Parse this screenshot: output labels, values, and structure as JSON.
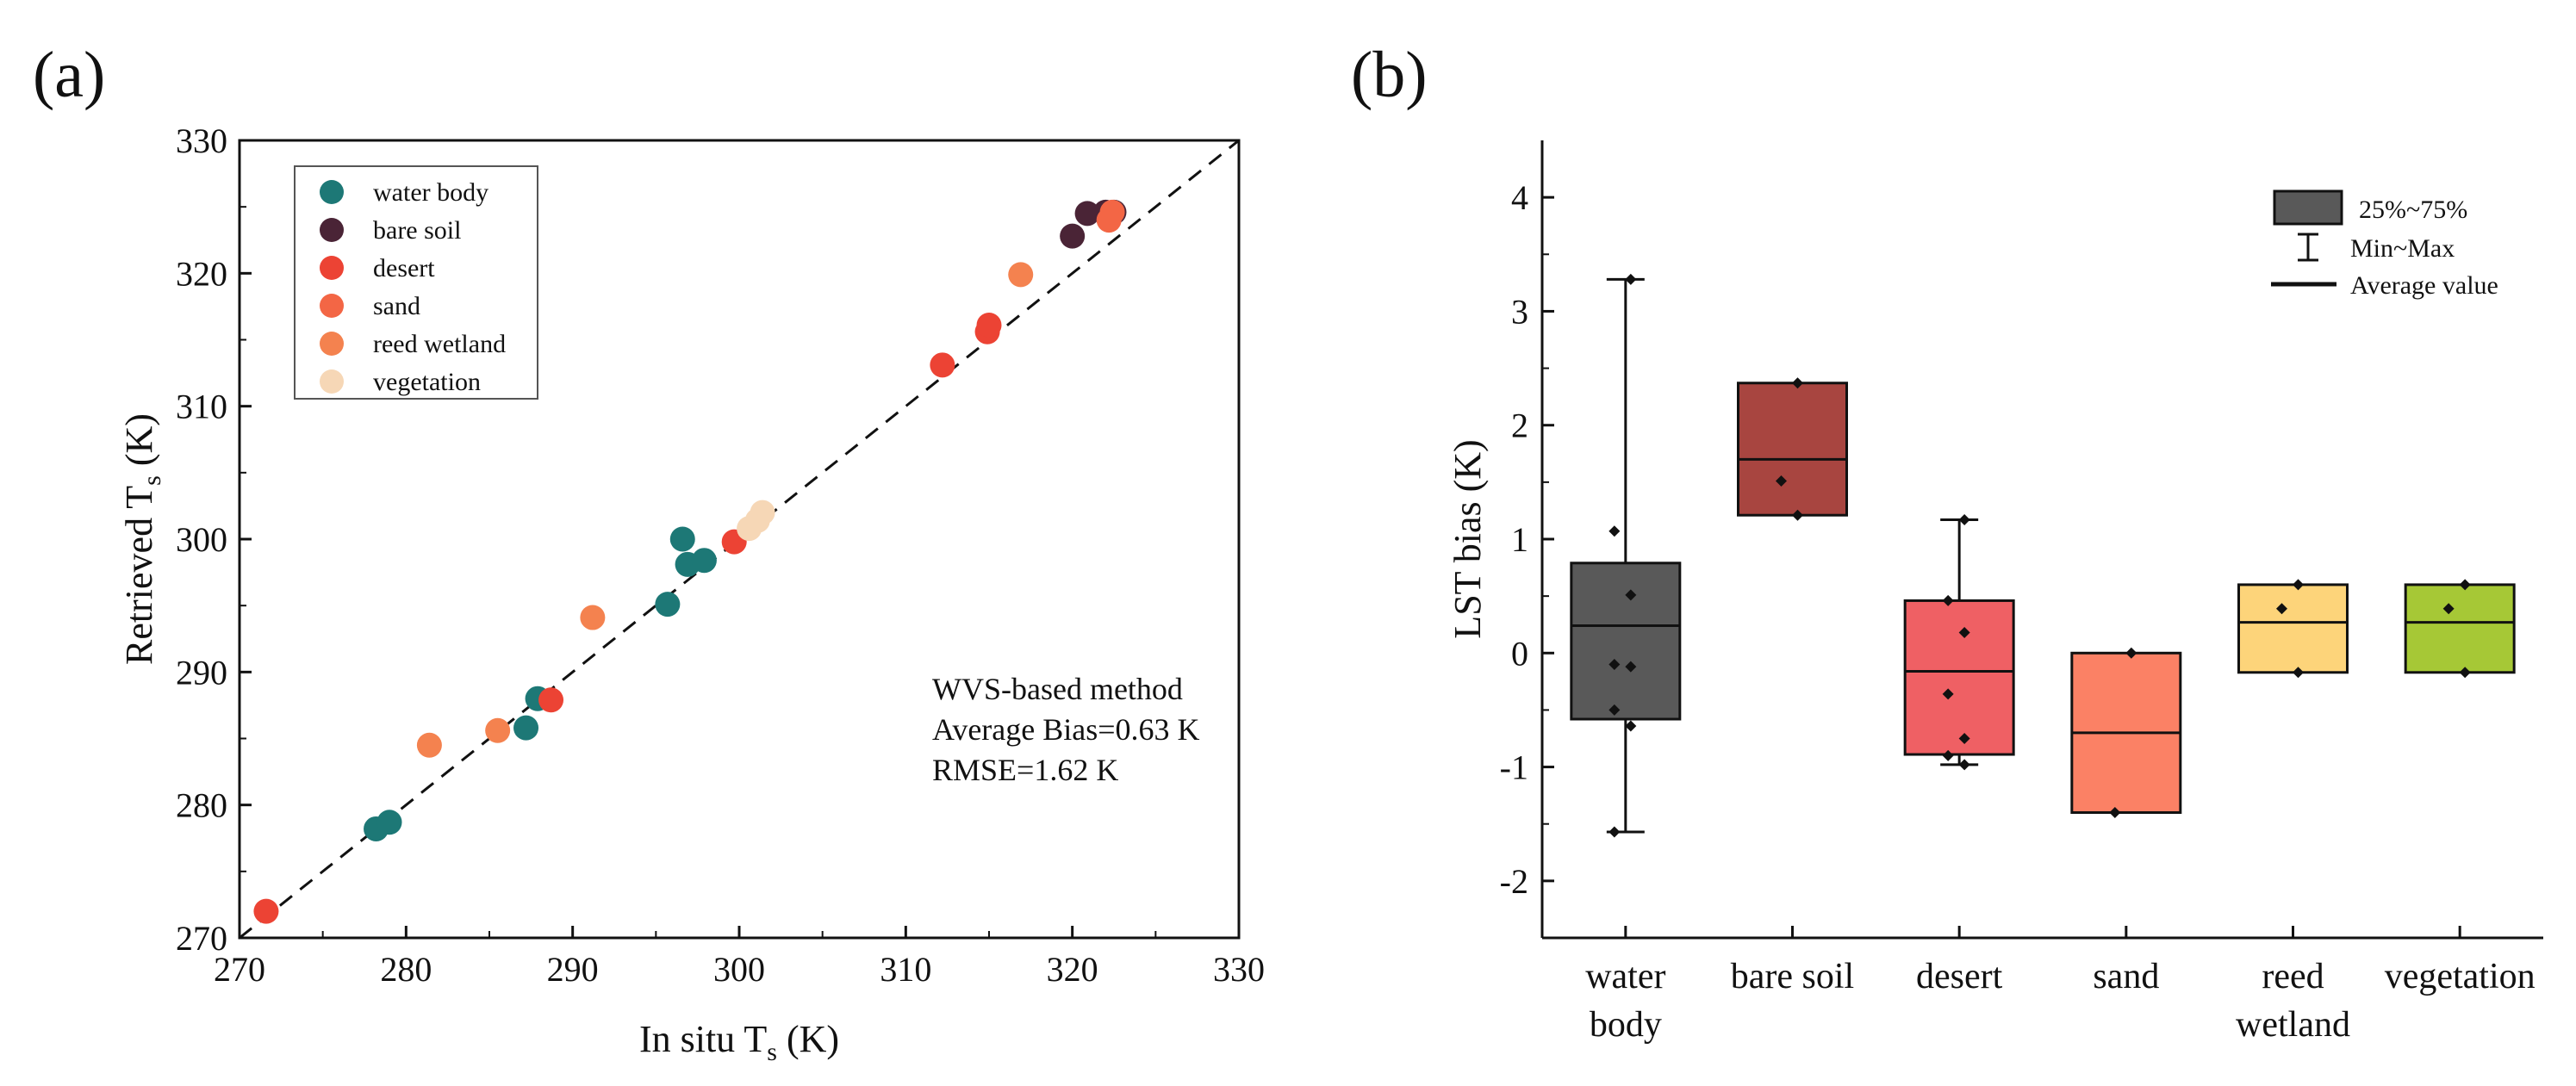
{
  "chart_data": [
    {
      "panel_label": "(a)",
      "type": "scatter",
      "xlabel": {
        "main": "In situ T",
        "sub": "s",
        "unit": " (K)"
      },
      "ylabel": {
        "main": "Retrieved T",
        "sub": "s",
        "unit": " (K)"
      },
      "xlim": [
        270,
        330
      ],
      "ylim": [
        270,
        330
      ],
      "xticks": [
        "270",
        "280",
        "290",
        "300",
        "310",
        "320",
        "330"
      ],
      "yticks": [
        "270",
        "280",
        "290",
        "300",
        "310",
        "320",
        "330"
      ],
      "reference_line": "1:1",
      "legend_position": "top-left",
      "series": [
        {
          "name": "water body",
          "color": "#1d7876",
          "points": [
            [
              278.2,
              278.2
            ],
            [
              279.0,
              278.7
            ],
            [
              287.2,
              285.8
            ],
            [
              287.9,
              288.0
            ],
            [
              295.7,
              295.1
            ],
            [
              296.6,
              300.0
            ],
            [
              296.9,
              298.1
            ],
            [
              297.9,
              298.4
            ]
          ]
        },
        {
          "name": "bare soil",
          "color": "#4a2436",
          "points": [
            [
              320.0,
              322.8
            ],
            [
              320.9,
              324.5
            ],
            [
              322.0,
              324.6
            ],
            [
              322.5,
              324.6
            ]
          ]
        },
        {
          "name": "desert",
          "color": "#ec4334",
          "points": [
            [
              271.6,
              272.0
            ],
            [
              288.7,
              287.9
            ],
            [
              299.7,
              299.8
            ],
            [
              312.2,
              313.1
            ],
            [
              314.9,
              315.6
            ],
            [
              315.0,
              316.1
            ]
          ]
        },
        {
          "name": "sand",
          "color": "#f36645",
          "points": [
            [
              322.2,
              324.0
            ],
            [
              322.4,
              324.6
            ]
          ]
        },
        {
          "name": "reed wetland",
          "color": "#f4824f",
          "points": [
            [
              281.4,
              284.5
            ],
            [
              285.5,
              285.6
            ],
            [
              291.2,
              294.1
            ],
            [
              316.9,
              319.9
            ]
          ]
        },
        {
          "name": "vegetation",
          "color": "#f6d7b6",
          "points": [
            [
              300.6,
              300.8
            ],
            [
              301.1,
              301.4
            ],
            [
              301.4,
              302.0
            ]
          ]
        }
      ],
      "annotations": [
        "WVS-based method",
        "Average Bias=0.63 K",
        "RMSE=1.62 K"
      ]
    },
    {
      "panel_label": "(b)",
      "type": "box",
      "ylabel": "LST bias (K)",
      "ylim": [
        -2.5,
        4.5
      ],
      "yticks": [
        "-2",
        "-1",
        "0",
        "1",
        "2",
        "3",
        "4"
      ],
      "categories": [
        {
          "lines": [
            "water",
            "body"
          ],
          "color": "#595959",
          "q1": -0.58,
          "q3": 0.79,
          "avg": 0.24,
          "min": -1.57,
          "max": 3.28,
          "whiskers": true,
          "points": [
            3.28,
            1.07,
            0.51,
            -0.1,
            -0.12,
            -0.5,
            -0.64,
            -1.57
          ]
        },
        {
          "lines": [
            "bare soil"
          ],
          "color": "#a84540",
          "q1": 1.21,
          "q3": 2.37,
          "avg": 1.7,
          "min": 1.21,
          "max": 2.37,
          "whiskers": false,
          "points": [
            2.37,
            1.51,
            1.21
          ]
        },
        {
          "lines": [
            "desert"
          ],
          "color": "#ef6064",
          "q1": -0.89,
          "q3": 0.46,
          "avg": -0.16,
          "min": -0.98,
          "max": 1.17,
          "whiskers": true,
          "points": [
            1.17,
            0.46,
            0.18,
            -0.36,
            -0.75,
            -0.9,
            -0.98
          ]
        },
        {
          "lines": [
            "sand"
          ],
          "color": "#fb8165",
          "q1": -1.4,
          "q3": 0.0,
          "avg": -0.7,
          "min": -1.4,
          "max": 0.0,
          "whiskers": false,
          "points": [
            0.0,
            -1.4
          ]
        },
        {
          "lines": [
            "reed",
            "wetland"
          ],
          "color": "#fdd47a",
          "q1": -0.17,
          "q3": 0.6,
          "avg": 0.27,
          "min": -0.17,
          "max": 0.6,
          "whiskers": false,
          "points": [
            0.6,
            0.39,
            -0.17
          ]
        },
        {
          "lines": [
            "vegetation"
          ],
          "color": "#a6c836",
          "q1": -0.17,
          "q3": 0.6,
          "avg": 0.27,
          "min": -0.17,
          "max": 0.6,
          "whiskers": false,
          "points": [
            0.6,
            0.39,
            -0.17
          ]
        }
      ],
      "legend": {
        "box": "25%~75%",
        "range": "Min~Max",
        "mean": "Average value",
        "box_color": "#595959",
        "position": "top-right"
      }
    }
  ]
}
